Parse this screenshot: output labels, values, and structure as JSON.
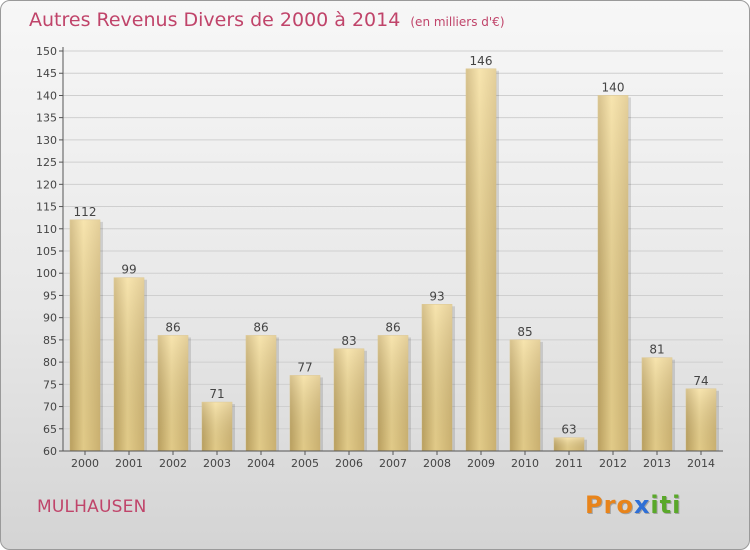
{
  "header": {
    "title": "Autres Revenus Divers de 2000 à 2014",
    "unit": "(en milliers d'€)"
  },
  "footer": {
    "city": "MULHAUSEN",
    "brand": [
      "P",
      "r",
      "o",
      "x",
      "i",
      "t",
      "i"
    ]
  },
  "colors": {
    "title": "#c0446a",
    "bar_light": "#f7e2a0",
    "bar_dark": "#c9ad67",
    "axis": "#555555",
    "grid": "#cfcfcf",
    "brand": [
      "#e8841b",
      "#e8841b",
      "#e8841b",
      "#2f6fd6",
      "#5aa82a",
      "#5aa82a",
      "#5aa82a"
    ]
  },
  "chart_data": {
    "type": "bar",
    "title": "Autres Revenus Divers de 2000 à 2014",
    "subtitle": "(en milliers d'€)",
    "categories": [
      "2000",
      "2001",
      "2002",
      "2003",
      "2004",
      "2005",
      "2006",
      "2007",
      "2008",
      "2009",
      "2010",
      "2011",
      "2012",
      "2013",
      "2014"
    ],
    "values": [
      112,
      99,
      86,
      71,
      86,
      77,
      83,
      86,
      93,
      146,
      85,
      63,
      140,
      81,
      74
    ],
    "ylim": [
      60,
      150
    ],
    "yticks": [
      60,
      65,
      70,
      75,
      80,
      85,
      90,
      95,
      100,
      105,
      110,
      115,
      120,
      125,
      130,
      135,
      140,
      145,
      150
    ],
    "grid": true,
    "data_labels": true
  }
}
